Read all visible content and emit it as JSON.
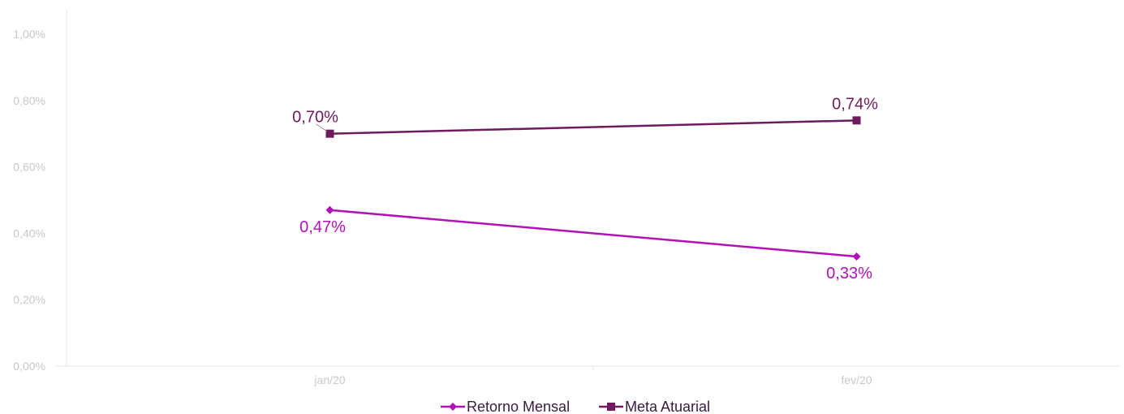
{
  "chart_data": {
    "type": "line",
    "categories": [
      "jan/20",
      "fev/20"
    ],
    "y_ticks": [
      "0,00%",
      "0,20%",
      "0,40%",
      "0,60%",
      "0,80%",
      "1,00%"
    ],
    "ylim": [
      0,
      1.0
    ],
    "grid": false,
    "legend_position": "bottom-center",
    "series": [
      {
        "name": "Retorno Mensal",
        "values": [
          0.47,
          0.33
        ],
        "labels": [
          "0,47%",
          "0,33%"
        ],
        "color": "#b012b8",
        "marker": "diamond"
      },
      {
        "name": "Meta Atuarial",
        "values": [
          0.7,
          0.74
        ],
        "labels": [
          "0,70%",
          "0,74%"
        ],
        "color": "#6e1a5e",
        "marker": "square"
      }
    ]
  }
}
